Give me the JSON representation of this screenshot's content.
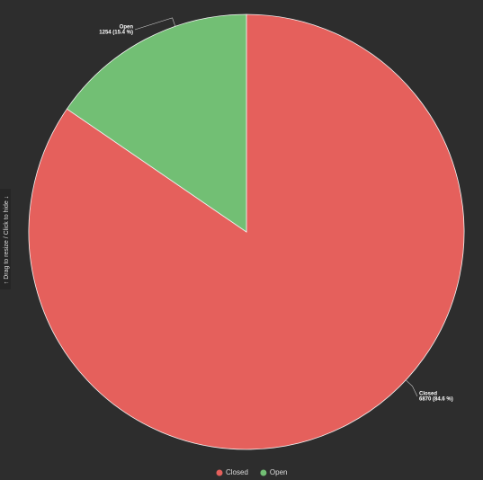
{
  "chart_data": {
    "type": "pie",
    "categories": [
      "Closed",
      "Open"
    ],
    "values": [
      6870,
      1254
    ],
    "value_labels": [
      "6870 (84.6 %)",
      "1254 (15.4 %)"
    ],
    "colors": [
      "#e5605c",
      "#72bf74"
    ],
    "legend": "bottom"
  },
  "side_handle": "↑  Drag to resize / Click to hide  ↓"
}
